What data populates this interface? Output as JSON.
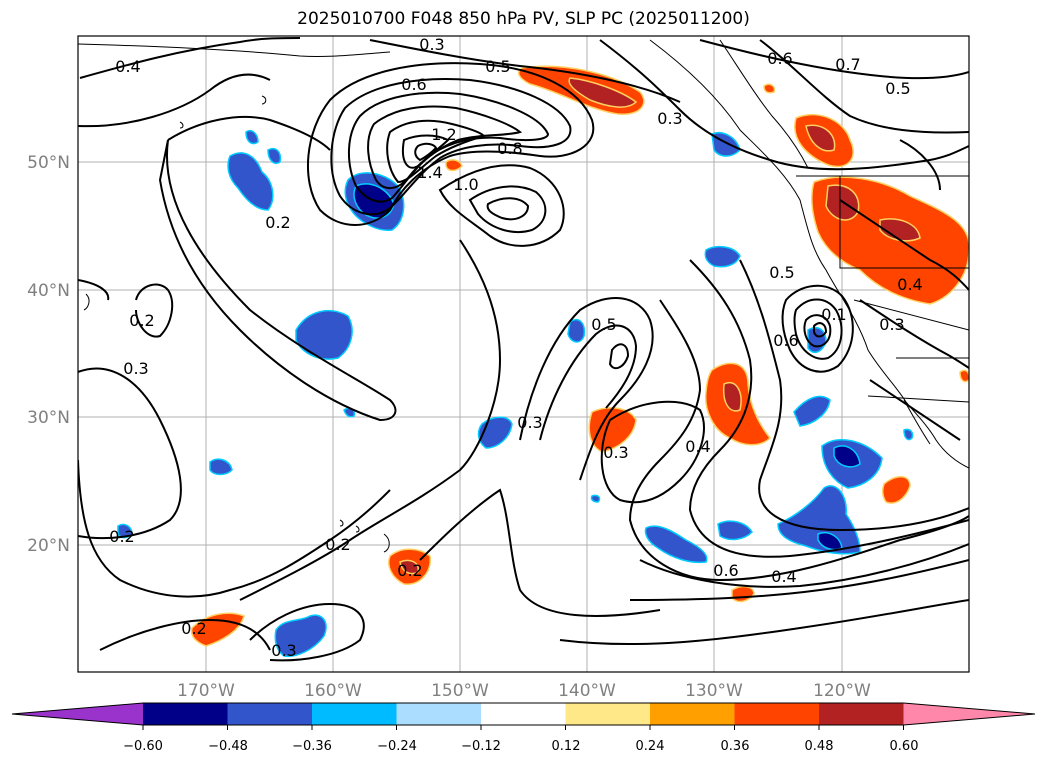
{
  "title": "2025010700 F048 850 hPa PV, SLP PC (2025011200)",
  "lat_labels": [
    "50°N",
    "40°N",
    "30°N",
    "20°N"
  ],
  "lon_labels": [
    "170°W",
    "160°W",
    "150°W",
    "140°W",
    "130°W",
    "120°W"
  ],
  "contour_labels": [
    "0.4",
    "0.3",
    "0.5",
    "0.6",
    "0.6",
    "0.7",
    "0.5",
    "1.2",
    "1.4",
    "1.0",
    "0.8",
    "0.3",
    "0.2",
    "0.2",
    "0.3",
    "0.2",
    "0.2",
    "0.5",
    "0.3",
    "0.3",
    "0.4",
    "0.5",
    "0.6",
    "0.3",
    "0.4",
    "0.2",
    "0.2",
    "0.3",
    "0.6",
    "0.4",
    "0.1"
  ],
  "colorbar": {
    "ticks": [
      "−0.60",
      "−0.48",
      "−0.36",
      "−0.24",
      "−0.12",
      "0.12",
      "0.24",
      "0.36",
      "0.48",
      "0.60"
    ],
    "colors": [
      "#9933cc",
      "#000088",
      "#3355cc",
      "#00bbff",
      "#aaddff",
      "#ffffff",
      "#ffe888",
      "#ffa000",
      "#ff4400",
      "#b22222",
      "#ff88aa"
    ]
  }
}
